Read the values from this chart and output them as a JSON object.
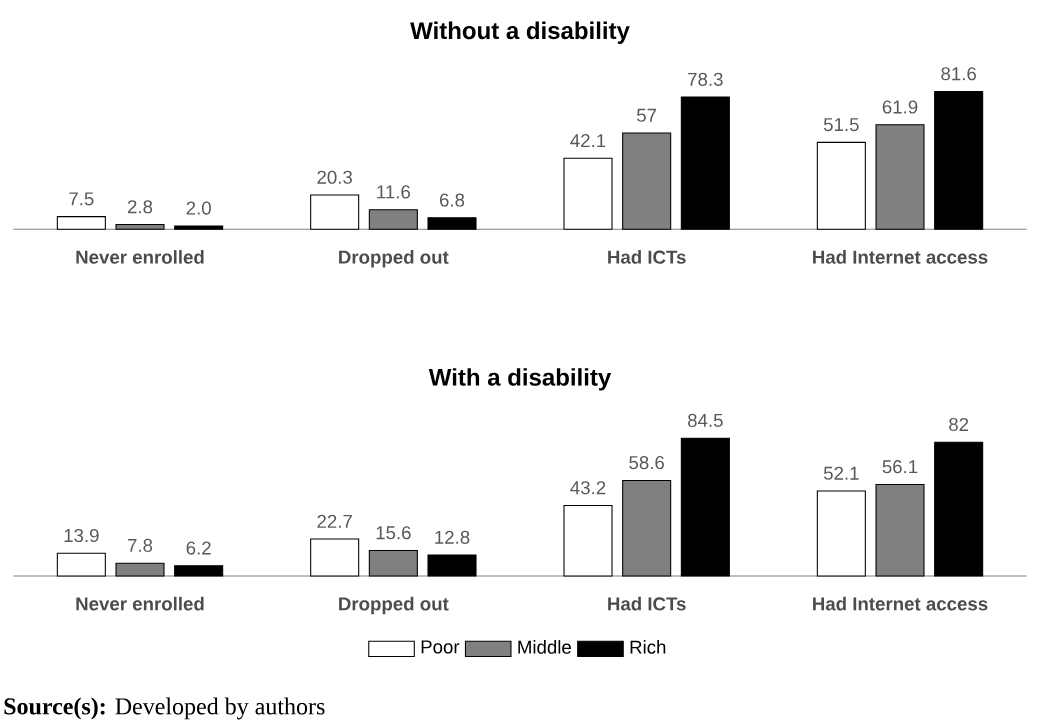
{
  "chart_data": [
    {
      "type": "bar",
      "title": "Without a disability",
      "categories": [
        "Never enrolled",
        "Dropped out",
        "Had ICTs",
        "Had Internet access"
      ],
      "series": [
        {
          "color": "#ffffff",
          "values": [
            7.5,
            20.3,
            42.1,
            51.5
          ],
          "value_labels": [
            "7.5",
            "20.3",
            "42.1",
            "51.5"
          ]
        },
        {
          "color": "#808080",
          "values": [
            2.8,
            11.6,
            57,
            61.9
          ],
          "value_labels": [
            "2.8",
            "11.6",
            "57",
            "61.9"
          ]
        },
        {
          "color": "#000000",
          "values": [
            2.0,
            6.8,
            78.3,
            81.6
          ],
          "value_labels": [
            "2.0",
            "6.8",
            "78.3",
            "81.6"
          ]
        }
      ],
      "legend": false
    },
    {
      "type": "bar",
      "title": "With a disability",
      "categories": [
        "Never enrolled",
        "Dropped out",
        "Had ICTs",
        "Had Internet access"
      ],
      "series": [
        {
          "name": "Poor",
          "color": "#ffffff",
          "values": [
            13.9,
            22.7,
            43.2,
            52.1
          ],
          "value_labels": [
            "13.9",
            "22.7",
            "43.2",
            "52.1"
          ]
        },
        {
          "name": "Middle",
          "color": "#808080",
          "values": [
            7.8,
            15.6,
            58.6,
            56.1
          ],
          "value_labels": [
            "7.8",
            "15.6",
            "58.6",
            "56.1"
          ]
        },
        {
          "name": "Rich",
          "color": "#000000",
          "values": [
            6.2,
            12.8,
            84.5,
            82
          ],
          "value_labels": [
            "6.2",
            "12.8",
            "84.5",
            "82"
          ]
        }
      ],
      "legend": "bottom",
      "annotations": [
        "**Source(s):** Developed by authors"
      ]
    }
  ]
}
